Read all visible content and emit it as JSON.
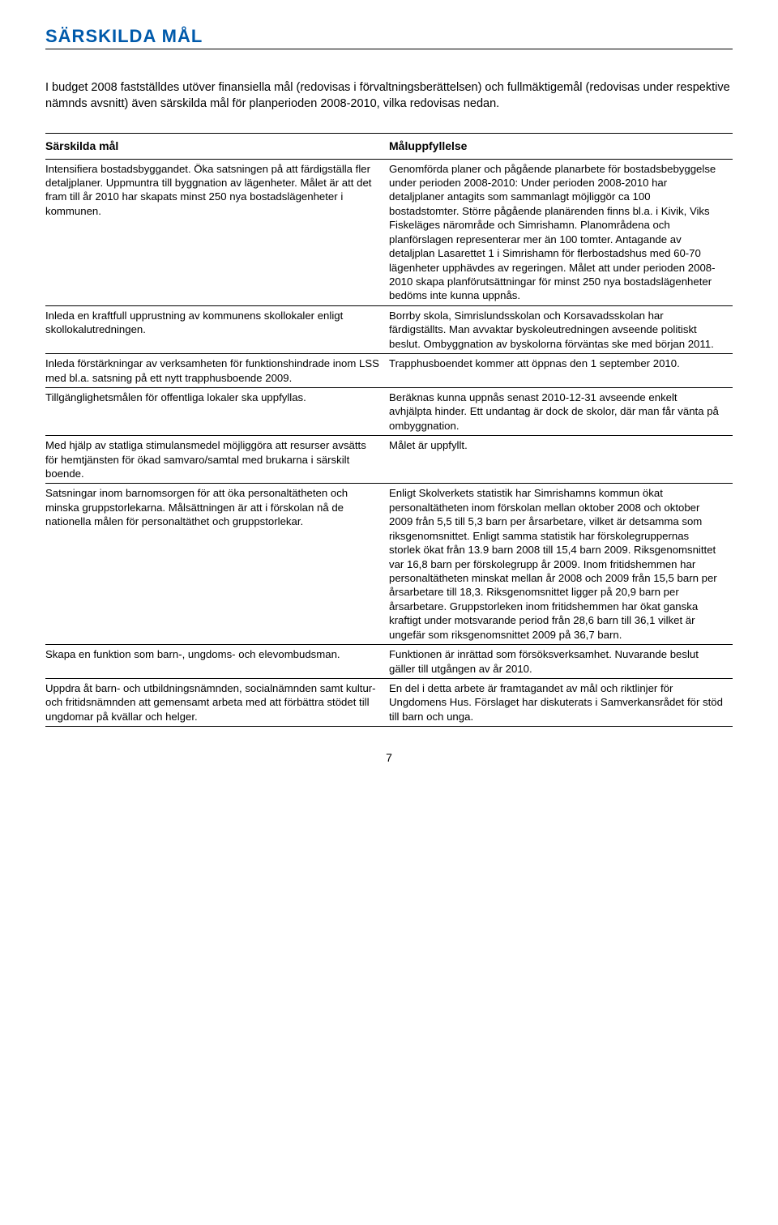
{
  "title": "SÄRSKILDA MÅL",
  "intro": "I budget 2008 fastställdes utöver finansiella mål (redovisas i förvaltningsberättelsen) och fullmäktigemål (redovisas under respektive nämnds avsnitt) även särskilda mål för planperioden 2008-2010, vilka redovisas nedan.",
  "table": {
    "header_left": "Särskilda mål",
    "header_right": "Måluppfyllelse",
    "rows": [
      {
        "left": "Intensifiera bostadsbyggandet. Öka satsningen på att färdigställa fler detaljplaner. Uppmuntra till byggnation av lägenheter. Målet är att det fram till år 2010 har skapats minst 250 nya bostadslägenheter i kommunen.",
        "right": "Genomförda planer och pågående planarbete för bostadsbebyggelse under perioden 2008-2010: Under perioden 2008-2010 har detaljplaner antagits som sammanlagt möjliggör ca 100 bostadstomter. Större pågående planärenden finns bl.a. i Kivik, Viks Fiskeläges närområde och Simrishamn. Planområdena och planförslagen representerar mer än 100 tomter. Antagande av detaljplan Lasarettet 1 i Simrishamn för flerbostadshus med 60-70 lägenheter upphävdes av regeringen. Målet att under perioden 2008-2010 skapa planförutsättningar för minst 250 nya bostadslägenheter bedöms inte kunna uppnås."
      },
      {
        "left": "Inleda en kraftfull upprustning av kommunens skollokaler enligt skollokalutredningen.",
        "right": "Borrby skola, Simrislundsskolan och Korsavadsskolan har färdigställts. Man avvaktar byskoleutredningen avseende politiskt beslut. Ombyggnation av byskolorna förväntas ske med början 2011."
      },
      {
        "left": "Inleda förstärkningar av verksamheten för funktionshindrade inom LSS med bl.a. satsning på ett nytt trapphusboende 2009.",
        "right": "Trapphusboendet kommer att öppnas den 1 september 2010."
      },
      {
        "left": "Tillgänglighetsmålen för offentliga lokaler ska uppfyllas.",
        "right": "Beräknas kunna uppnås senast 2010-12-31 avseende enkelt avhjälpta hinder. Ett undantag är dock de skolor, där man får vänta på ombyggnation."
      },
      {
        "left": "Med hjälp av statliga stimulansmedel möjliggöra att resurser avsätts för hemtjänsten för ökad samvaro/samtal med brukarna i särskilt boende.",
        "right": "Målet är uppfyllt."
      },
      {
        "left": "Satsningar inom barnomsorgen för att öka personaltätheten och minska gruppstorlekarna. Målsättningen är att i förskolan nå de nationella målen för personaltäthet och gruppstorlekar.",
        "right": "Enligt Skolverkets statistik har Simrishamns kommun ökat personaltätheten inom förskolan mellan oktober 2008 och oktober 2009 från 5,5 till 5,3 barn per årsarbetare, vilket är detsamma som riksgenomsnittet. Enligt samma statistik har förskolegruppernas storlek ökat från 13.9 barn 2008 till 15,4 barn 2009. Riksgenomsnittet var 16,8 barn per förskolegrupp år 2009. Inom fritidshemmen har personaltätheten minskat mellan år 2008 och 2009 från 15,5 barn per årsarbetare till 18,3. Riksgenomsnittet ligger på 20,9 barn per årsarbetare. Gruppstorleken inom fritidshemmen har ökat ganska kraftigt under motsvarande period från 28,6 barn till 36,1 vilket är ungefär som riksgenomsnittet 2009 på 36,7 barn."
      },
      {
        "left": "Skapa en funktion som barn-, ungdoms- och elevombudsman.",
        "right": "Funktionen är inrättad som försöksverksamhet. Nuvarande beslut gäller till utgången av år 2010."
      },
      {
        "left": "Uppdra åt barn- och utbildningsnämnden, socialnämnden samt kultur- och fritidsnämnden att gemensamt arbeta med att förbättra stödet till ungdomar på kvällar och helger.",
        "right": "En del i detta arbete är framtagandet av mål och riktlinjer för Ungdomens Hus. Förslaget har diskuterats i Samverkansrådet för stöd till barn och unga."
      }
    ]
  },
  "page_number": "7",
  "style": {
    "title_color": "#005aab",
    "text_color": "#000000",
    "background": "#ffffff"
  }
}
